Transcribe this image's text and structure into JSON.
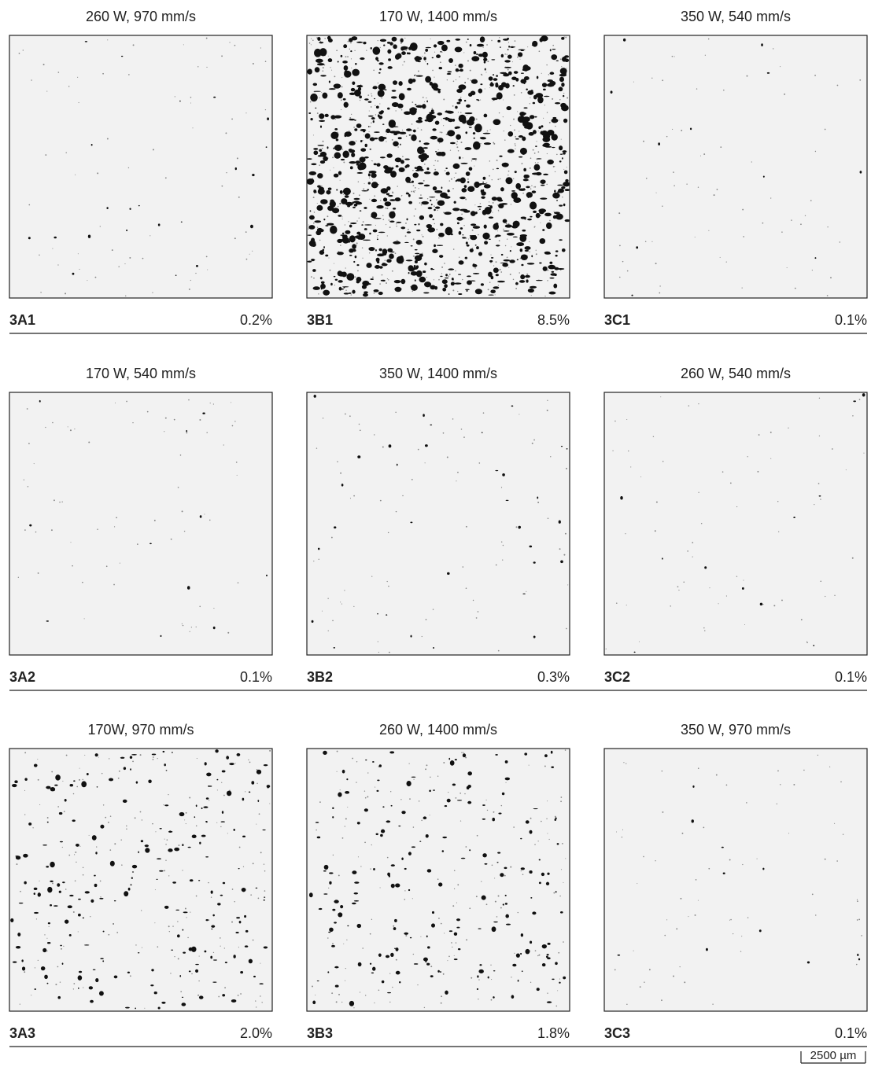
{
  "panels": [
    {
      "title": "260 W, 970 mm/s",
      "label": "3A1",
      "porosity": "0.2%"
    },
    {
      "title": "170 W, 1400 mm/s",
      "label": "3B1",
      "porosity": "8.5%"
    },
    {
      "title": "350 W, 540 mm/s",
      "label": "3C1",
      "porosity": "0.1%"
    },
    {
      "title": "170 W, 540 mm/s",
      "label": "3A2",
      "porosity": "0.1%"
    },
    {
      "title": "350 W, 1400 mm/s",
      "label": "3B2",
      "porosity": "0.3%"
    },
    {
      "title": "260 W, 540 mm/s",
      "label": "3C2",
      "porosity": "0.1%"
    },
    {
      "title": "170W, 970 mm/s",
      "label": "3A3",
      "porosity": "2.0%"
    },
    {
      "title": "260 W, 1400 mm/s",
      "label": "3B3",
      "porosity": "1.8%"
    },
    {
      "title": "350 W, 970 mm/s",
      "label": "3C3",
      "porosity": "0.1%"
    }
  ],
  "scale_bar": "2500 µm"
}
